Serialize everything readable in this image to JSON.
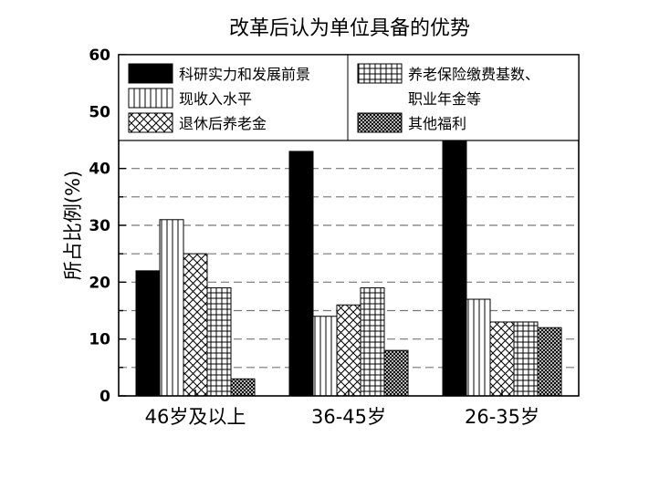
{
  "chart_data": {
    "type": "bar",
    "title": "改革后认为单位具备的优势",
    "xlabel": "",
    "ylabel": "所占比例(%)",
    "ylim": [
      0,
      60
    ],
    "yticks": [
      0,
      10,
      20,
      30,
      40,
      50,
      60
    ],
    "grid": "dashed horizontal lines every 5",
    "legend_position": "top",
    "categories": [
      "46岁及以上",
      "36-45岁",
      "26-35岁"
    ],
    "series": [
      {
        "name": "科研实力和发展前景",
        "pattern": "solid",
        "color": "#000000",
        "values": [
          22,
          43,
          45
        ]
      },
      {
        "name": "现收入水平",
        "pattern": "vertical",
        "color": "#000000",
        "values": [
          31,
          14,
          17
        ]
      },
      {
        "name": "退休后养老金",
        "pattern": "crosshatch",
        "color": "#000000",
        "values": [
          25,
          16,
          13
        ]
      },
      {
        "name": "养老保险缴费基数、职业年金等",
        "pattern": "grid",
        "color": "#000000",
        "values": [
          19,
          19,
          13
        ]
      },
      {
        "name": "其他福利",
        "pattern": "dense",
        "color": "#000000",
        "values": [
          3,
          8,
          12
        ]
      }
    ],
    "legend_rows": [
      [
        "科研实力和发展前景",
        "养老保险缴费基数、"
      ],
      [
        "现收入水平",
        "职业年金等"
      ],
      [
        "退休后养老金",
        "其他福利"
      ]
    ]
  }
}
